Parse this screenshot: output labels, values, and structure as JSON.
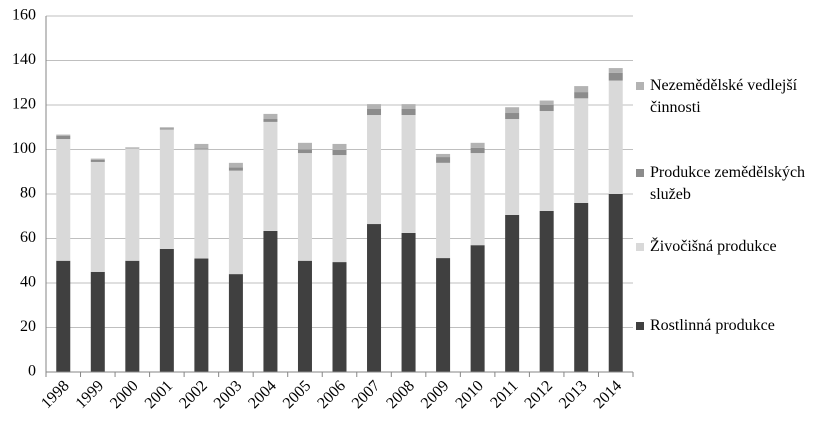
{
  "chart_data": {
    "type": "stacked-bar",
    "categories": [
      "1998",
      "1999",
      "2000",
      "2001",
      "2002",
      "2003",
      "2004",
      "2005",
      "2006",
      "2007",
      "2008",
      "2009",
      "2010",
      "2011",
      "2012",
      "2013",
      "2014"
    ],
    "series": [
      {
        "name": "Rostlinná produkce",
        "color": "#404040",
        "values": [
          50,
          45,
          50,
          55.3,
          51,
          44,
          63.4,
          50,
          49.4,
          66.5,
          62.5,
          51.2,
          57,
          70.6,
          72.4,
          76,
          80
        ]
      },
      {
        "name": "Živočišná produkce",
        "color": "#d9d9d9",
        "values": [
          54.7,
          49.4,
          50.5,
          53.7,
          49,
          46.5,
          49,
          48.4,
          48.1,
          49,
          53,
          42.8,
          41.4,
          43.1,
          44.9,
          47,
          51
        ]
      },
      {
        "name": "Produkce zemědělských služeb",
        "color": "#8c8c8c",
        "values": [
          1.5,
          1,
          0.3,
          0.5,
          0.5,
          1.5,
          1.3,
          1.6,
          2.3,
          2.7,
          2.7,
          2.6,
          2.3,
          2.7,
          2.7,
          2.8,
          3.4
        ]
      },
      {
        "name": "Nezemědělské vedlejší činnosti",
        "color": "#b3b3b3",
        "values": [
          0.5,
          0.5,
          0.2,
          0.5,
          2,
          2,
          2.3,
          3,
          2.7,
          2.2,
          2.2,
          1.4,
          2.3,
          2.6,
          2,
          2.7,
          2.2
        ]
      }
    ],
    "ylim": [
      0,
      160
    ],
    "yticks": [
      0,
      20,
      40,
      60,
      80,
      100,
      120,
      140,
      160
    ],
    "grid": true,
    "legend": "right"
  }
}
